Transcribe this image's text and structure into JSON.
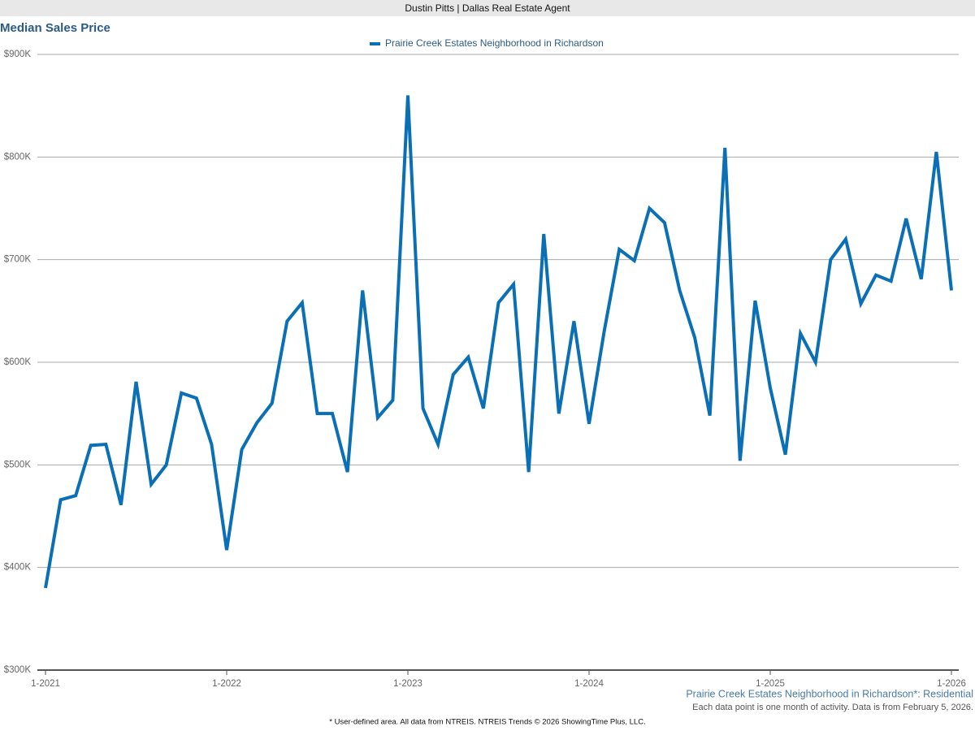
{
  "header": "Dustin Pitts | Dallas Real Estate Agent",
  "chart_data": {
    "type": "line",
    "title": "Median Sales Price",
    "x": [
      "1-2021",
      "2-2021",
      "3-2021",
      "4-2021",
      "5-2021",
      "6-2021",
      "7-2021",
      "8-2021",
      "9-2021",
      "10-2021",
      "11-2021",
      "12-2021",
      "1-2022",
      "2-2022",
      "3-2022",
      "4-2022",
      "5-2022",
      "6-2022",
      "7-2022",
      "8-2022",
      "9-2022",
      "10-2022",
      "11-2022",
      "12-2022",
      "1-2023",
      "2-2023",
      "3-2023",
      "4-2023",
      "5-2023",
      "6-2023",
      "7-2023",
      "8-2023",
      "9-2023",
      "10-2023",
      "11-2023",
      "12-2023",
      "1-2024",
      "2-2024",
      "3-2024",
      "4-2024",
      "5-2024",
      "6-2024",
      "7-2024",
      "8-2024",
      "9-2024",
      "10-2024",
      "11-2024",
      "12-2024",
      "1-2025",
      "2-2025",
      "3-2025",
      "4-2025",
      "5-2025",
      "6-2025",
      "7-2025",
      "8-2025",
      "9-2025",
      "10-2025",
      "11-2025",
      "12-2025",
      "1-2026"
    ],
    "xticks": [
      "1-2021",
      "1-2022",
      "1-2023",
      "1-2024",
      "1-2025",
      "1-2026"
    ],
    "series": [
      {
        "name": "Prairie Creek Estates Neighborhood in Richardson",
        "color": "#0a6fb5",
        "values": [
          380000,
          466000,
          470000,
          519000,
          520000,
          461000,
          581000,
          481000,
          500000,
          570000,
          565000,
          520000,
          417000,
          515000,
          541000,
          560000,
          640000,
          658000,
          550000,
          550000,
          493000,
          670000,
          546000,
          563000,
          860000,
          555000,
          520000,
          588000,
          605000,
          555000,
          658000,
          676000,
          493000,
          725000,
          550000,
          640000,
          540000,
          630000,
          710000,
          699000,
          750000,
          736000,
          670000,
          624000,
          548000,
          809000,
          504000,
          660000,
          575000,
          510000,
          628000,
          600000,
          700000,
          720000,
          657000,
          685000,
          679000,
          740000,
          681000,
          805000,
          670000
        ]
      }
    ],
    "ylim": [
      300000,
      900000
    ],
    "yticks": [
      {
        "value": 300000,
        "label": "$300K"
      },
      {
        "value": 400000,
        "label": "$400K"
      },
      {
        "value": 500000,
        "label": "$500K"
      },
      {
        "value": 600000,
        "label": "$600K"
      },
      {
        "value": 700000,
        "label": "$700K"
      },
      {
        "value": 800000,
        "label": "$800K"
      },
      {
        "value": 900000,
        "label": "$900K"
      }
    ],
    "grid": true,
    "legend": "top",
    "area_caption": "Prairie Creek Estates Neighborhood in Richardson*: Residential",
    "data_note": "Each data point is one month of activity. Data is from February 5, 2026.",
    "footnote": "* User-defined area. All data from NTREIS. NTREIS Trends © 2026 ShowingTime Plus, LLC."
  }
}
